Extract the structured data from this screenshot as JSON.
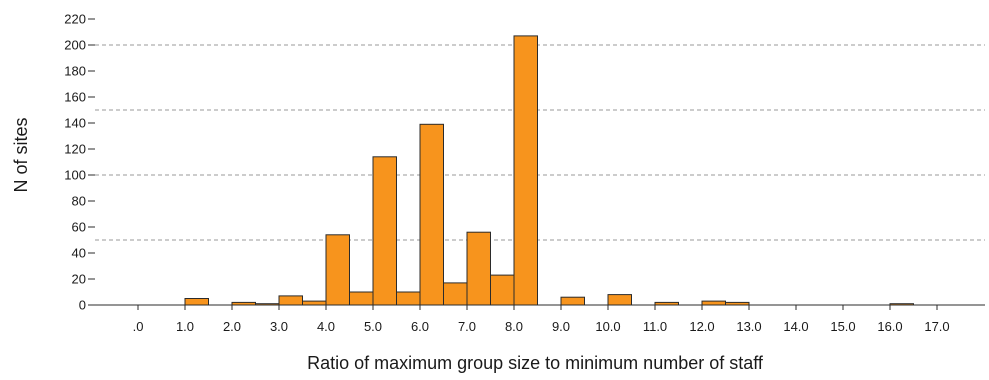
{
  "chart_data": {
    "type": "bar",
    "xlabel": "Ratio of maximum group size to minimum number of staff",
    "ylabel": "N of sites",
    "ylim": [
      0,
      220
    ],
    "xlim": [
      0,
      18
    ],
    "grid": "horizontal dashed",
    "y_ticks": [
      "0",
      "20",
      "40",
      "60",
      "80",
      "100",
      "120",
      "140",
      "160",
      "180",
      "200",
      "220"
    ],
    "x_ticks": [
      ".0",
      "1.0",
      "2.0",
      "3.0",
      "4.0",
      "5.0",
      "6.0",
      "7.0",
      "8.0",
      "9.0",
      "10.0",
      "11.0",
      "12.0",
      "13.0",
      "14.0",
      "15.0",
      "16.0",
      "17.0"
    ],
    "bin_width": 0.5,
    "bars": [
      {
        "x_start": 1.0,
        "value": 5
      },
      {
        "x_start": 2.0,
        "value": 2
      },
      {
        "x_start": 2.5,
        "value": 1
      },
      {
        "x_start": 3.0,
        "value": 7
      },
      {
        "x_start": 3.5,
        "value": 3
      },
      {
        "x_start": 4.0,
        "value": 54
      },
      {
        "x_start": 4.5,
        "value": 10
      },
      {
        "x_start": 5.0,
        "value": 114
      },
      {
        "x_start": 5.5,
        "value": 10
      },
      {
        "x_start": 6.0,
        "value": 139
      },
      {
        "x_start": 6.5,
        "value": 17
      },
      {
        "x_start": 7.0,
        "value": 56
      },
      {
        "x_start": 7.5,
        "value": 23
      },
      {
        "x_start": 8.0,
        "value": 207
      },
      {
        "x_start": 9.0,
        "value": 6
      },
      {
        "x_start": 10.0,
        "value": 8
      },
      {
        "x_start": 11.0,
        "value": 2
      },
      {
        "x_start": 12.0,
        "value": 3
      },
      {
        "x_start": 12.5,
        "value": 2
      },
      {
        "x_start": 16.0,
        "value": 1
      }
    ],
    "colors": {
      "bar_fill": "#f7941d",
      "bar_stroke": "#2b2b2b",
      "gridline": "#9a9a9a"
    }
  }
}
